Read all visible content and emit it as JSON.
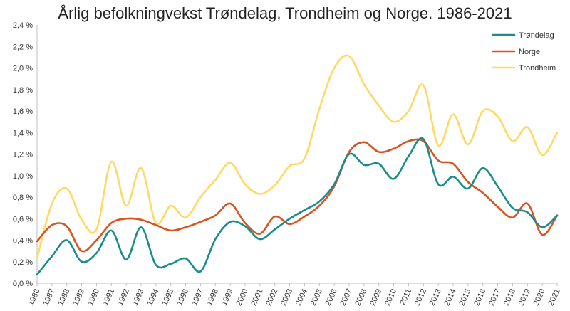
{
  "chart_data": {
    "type": "line",
    "title": "Årlig befolkningvekst Trøndelag, Trondheim og Norge. 1986-2021",
    "xlabel": "",
    "ylabel": "",
    "x": [
      "1986",
      "1987",
      "1988",
      "1989",
      "1990",
      "1991",
      "1992",
      "1993",
      "1994",
      "1995",
      "1996",
      "1997",
      "1998",
      "1999",
      "2000",
      "2001",
      "2002",
      "2003",
      "2004",
      "2005",
      "2006",
      "2007",
      "2008",
      "2009",
      "2010",
      "2011",
      "2012",
      "2013",
      "2014",
      "2015",
      "2016",
      "2017",
      "2018",
      "2019",
      "2020",
      "2021"
    ],
    "ylim": [
      0,
      2.4
    ],
    "yticks": [
      "0,0 %",
      "0,2 %",
      "0,4 %",
      "0,6 %",
      "0,8 %",
      "1,0 %",
      "1,2 %",
      "1,4 %",
      "1,6 %",
      "1,8 %",
      "2,0 %",
      "2,2 %",
      "2,4 %"
    ],
    "ytick_values": [
      0,
      0.2,
      0.4,
      0.6,
      0.8,
      1.0,
      1.2,
      1.4,
      1.6,
      1.8,
      2.0,
      2.2,
      2.4
    ],
    "grid": false,
    "legend_position": "top-right",
    "series": [
      {
        "name": "Trøndelag",
        "color": "#1a8c8c",
        "values": [
          0.08,
          0.25,
          0.4,
          0.2,
          0.28,
          0.49,
          0.22,
          0.52,
          0.17,
          0.18,
          0.23,
          0.11,
          0.41,
          0.57,
          0.53,
          0.41,
          0.5,
          0.6,
          0.68,
          0.76,
          0.92,
          1.2,
          1.1,
          1.11,
          0.97,
          1.18,
          1.34,
          0.92,
          0.99,
          0.88,
          1.07,
          0.9,
          0.7,
          0.66,
          0.52,
          0.63
        ]
      },
      {
        "name": "Norge",
        "color": "#d9531e",
        "values": [
          0.39,
          0.54,
          0.53,
          0.3,
          0.4,
          0.56,
          0.6,
          0.59,
          0.54,
          0.49,
          0.52,
          0.57,
          0.63,
          0.74,
          0.56,
          0.46,
          0.62,
          0.55,
          0.62,
          0.72,
          0.9,
          1.22,
          1.31,
          1.22,
          1.25,
          1.32,
          1.32,
          1.14,
          1.11,
          0.94,
          0.84,
          0.71,
          0.61,
          0.74,
          0.45,
          0.63
        ]
      },
      {
        "name": "Trondheim",
        "color": "#ffd966",
        "values": [
          0.23,
          0.74,
          0.88,
          0.59,
          0.5,
          1.13,
          0.72,
          1.07,
          0.56,
          0.72,
          0.61,
          0.8,
          0.96,
          1.12,
          0.92,
          0.83,
          0.91,
          1.09,
          1.16,
          1.62,
          2.0,
          2.11,
          1.85,
          1.65,
          1.5,
          1.6,
          1.84,
          1.28,
          1.57,
          1.29,
          1.6,
          1.55,
          1.32,
          1.45,
          1.19,
          1.4
        ]
      }
    ]
  }
}
